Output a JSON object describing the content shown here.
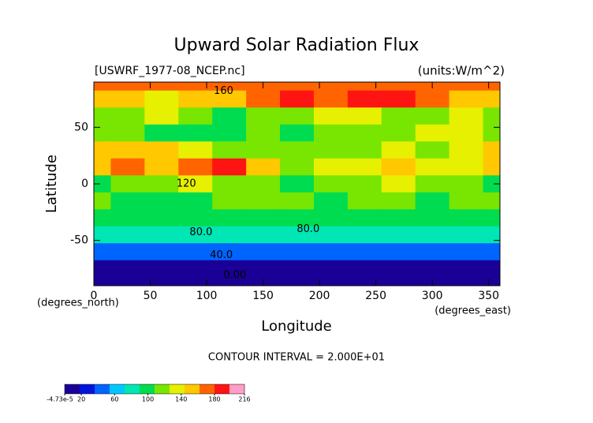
{
  "chart_data": {
    "type": "contour",
    "title": "Upward Solar Radiation Flux",
    "subtitle": "[USWRF_1977-08_NCEP.nc]",
    "units": "(units:W/m^2)",
    "x_label": "Longitude",
    "y_label": "Latitude",
    "x_unit": "(degrees_east)",
    "y_unit": "(degrees_north)",
    "footer": "CONTOUR INTERVAL = 2.000E+01",
    "x": [
      0,
      30,
      60,
      90,
      120,
      150,
      180,
      210,
      240,
      270,
      300,
      330,
      360
    ],
    "y": [
      90,
      75,
      60,
      45,
      30,
      15,
      0,
      -15,
      -30,
      -45,
      -60,
      -75,
      -90
    ],
    "z": [
      [
        170,
        170,
        170,
        170,
        170,
        170,
        170,
        170,
        170,
        170,
        170,
        170,
        170
      ],
      [
        160,
        150,
        140,
        150,
        150,
        170,
        180,
        175,
        180,
        190,
        170,
        160,
        160
      ],
      [
        120,
        110,
        130,
        120,
        100,
        110,
        120,
        130,
        140,
        110,
        120,
        130,
        120
      ],
      [
        110,
        120,
        100,
        90,
        100,
        110,
        100,
        120,
        110,
        120,
        130,
        140,
        110
      ],
      [
        150,
        160,
        150,
        130,
        110,
        120,
        110,
        120,
        120,
        140,
        120,
        130,
        150
      ],
      [
        160,
        170,
        160,
        170,
        180,
        150,
        120,
        130,
        130,
        150,
        140,
        130,
        160
      ],
      [
        100,
        110,
        120,
        130,
        120,
        110,
        100,
        110,
        110,
        140,
        110,
        110,
        100
      ],
      [
        110,
        100,
        90,
        100,
        110,
        120,
        110,
        100,
        110,
        120,
        100,
        110,
        110
      ],
      [
        90,
        100,
        90,
        90,
        100,
        90,
        90,
        100,
        100,
        90,
        100,
        90,
        90
      ],
      [
        80,
        80,
        80,
        80,
        80,
        80,
        80,
        80,
        80,
        80,
        80,
        80,
        80
      ],
      [
        50,
        50,
        45,
        45,
        45,
        50,
        50,
        50,
        50,
        50,
        50,
        50,
        50
      ],
      [
        15,
        15,
        15,
        15,
        15,
        15,
        15,
        15,
        15,
        15,
        15,
        15,
        15
      ],
      [
        0,
        0,
        0,
        0,
        0,
        0,
        0,
        0,
        0,
        0,
        0,
        0,
        0
      ]
    ],
    "xlim": [
      0,
      360
    ],
    "ylim": [
      -90,
      90
    ],
    "xticks": [
      0,
      50,
      100,
      150,
      200,
      250,
      300,
      350
    ],
    "yticks": [
      -50,
      0,
      50
    ],
    "contour_labels": [
      {
        "text": "160",
        "x": 115,
        "y": 82
      },
      {
        "text": "120",
        "x": 82,
        "y": 0
      },
      {
        "text": "80.0",
        "x": 95,
        "y": -43
      },
      {
        "text": "80.0",
        "x": 190,
        "y": -40
      },
      {
        "text": "40.0",
        "x": 113,
        "y": -63
      },
      {
        "text": "0.00",
        "x": 125,
        "y": -81
      }
    ],
    "colormap": [
      "#1a0096",
      "#0014dc",
      "#0064ff",
      "#00c8ff",
      "#00e6b4",
      "#00dc50",
      "#78e600",
      "#e6f000",
      "#ffc800",
      "#ff6400",
      "#ff1414",
      "#ff9ec8"
    ],
    "clim": [
      -4.73e-05,
      216
    ],
    "cticks": [
      {
        "value": -4.73e-05,
        "label": "-4.73e-5"
      },
      20,
      60,
      100,
      140,
      180,
      216
    ]
  }
}
